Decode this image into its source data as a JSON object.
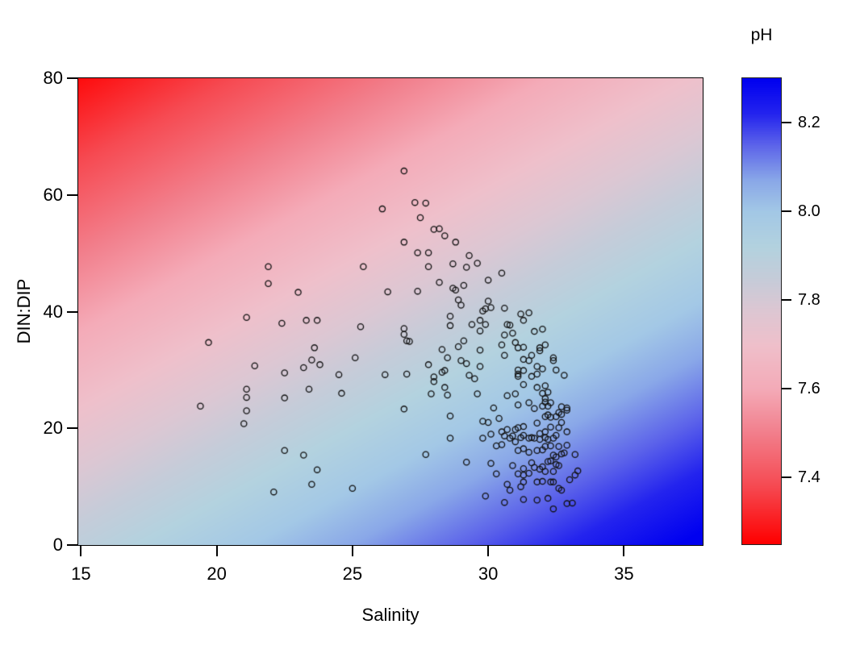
{
  "chart_data": {
    "type": "scatter",
    "title": "",
    "xlabel": "Salinity",
    "ylabel": "DIN:DIP",
    "legend_title": "pH",
    "x_domain": [
      14.9,
      37.9
    ],
    "y_domain": [
      0,
      80
    ],
    "x_ticks": [
      15,
      20,
      25,
      30,
      35
    ],
    "y_ticks": [
      0,
      20,
      40,
      60,
      80
    ],
    "grid": false,
    "legend_position": "right-colorbar",
    "background_surface": {
      "description": "diagonal pH gradient surface, red (low pH) at top-left to blue (high pH) at bottom-right",
      "model": "pH = 7.88 + 0.0191*(salinity-15) - 0.0076*(DIN:DIP)",
      "at_sal15_din0": 7.88,
      "per_salinity": 0.0191,
      "per_dindip": -0.0076
    },
    "colorbar": {
      "title": "pH",
      "domain": [
        7.25,
        8.3
      ],
      "ticks": [
        7.4,
        7.6,
        7.8,
        8.0,
        8.2
      ],
      "ramp": [
        [
          7.25,
          "#ff0000"
        ],
        [
          7.38,
          "#f64a52"
        ],
        [
          7.5,
          "#f27f8c"
        ],
        [
          7.6,
          "#f4abb8"
        ],
        [
          7.7,
          "#efc0cb"
        ],
        [
          7.78,
          "#dcc7d3"
        ],
        [
          7.85,
          "#c5ccd9"
        ],
        [
          7.92,
          "#b3d2df"
        ],
        [
          8.0,
          "#a3c8e6"
        ],
        [
          8.07,
          "#8aa8e8"
        ],
        [
          8.15,
          "#5c63ea"
        ],
        [
          8.22,
          "#2424ee"
        ],
        [
          8.3,
          "#0000f0"
        ]
      ]
    },
    "point_style": {
      "shape": "open-circle",
      "stroke_color": "#111111",
      "radius_px": 3.6,
      "stroke_width_px": 1.3
    },
    "points": [
      [
        19.4,
        23.8
      ],
      [
        19.7,
        34.7
      ],
      [
        21.0,
        20.8
      ],
      [
        21.1,
        39.0
      ],
      [
        21.1,
        26.7
      ],
      [
        21.1,
        25.3
      ],
      [
        21.1,
        23.0
      ],
      [
        21.4,
        30.7
      ],
      [
        21.9,
        47.7
      ],
      [
        21.9,
        44.8
      ],
      [
        22.1,
        9.1
      ],
      [
        22.4,
        38.0
      ],
      [
        22.5,
        29.5
      ],
      [
        22.5,
        25.2
      ],
      [
        22.5,
        16.2
      ],
      [
        23.0,
        43.3
      ],
      [
        23.2,
        30.4
      ],
      [
        23.2,
        15.4
      ],
      [
        23.3,
        38.5
      ],
      [
        23.4,
        26.7
      ],
      [
        23.5,
        31.7
      ],
      [
        23.5,
        10.4
      ],
      [
        23.6,
        33.8
      ],
      [
        23.7,
        38.5
      ],
      [
        23.7,
        12.9
      ],
      [
        23.8,
        30.9
      ],
      [
        24.5,
        29.2
      ],
      [
        24.6,
        26.0
      ],
      [
        25.0,
        9.7
      ],
      [
        25.1,
        32.1
      ],
      [
        25.3,
        37.4
      ],
      [
        25.4,
        47.7
      ],
      [
        26.1,
        57.6
      ],
      [
        26.2,
        29.2
      ],
      [
        26.3,
        43.4
      ],
      [
        26.9,
        64.1
      ],
      [
        26.9,
        51.9
      ],
      [
        26.9,
        37.1
      ],
      [
        26.9,
        36.1
      ],
      [
        26.9,
        23.3
      ],
      [
        27.0,
        35.0
      ],
      [
        27.1,
        34.9
      ],
      [
        27.0,
        29.3
      ],
      [
        27.3,
        58.7
      ],
      [
        27.4,
        50.1
      ],
      [
        27.4,
        43.5
      ],
      [
        27.5,
        56.1
      ],
      [
        27.7,
        58.6
      ],
      [
        27.7,
        15.5
      ],
      [
        27.8,
        50.1
      ],
      [
        27.8,
        47.7
      ],
      [
        27.8,
        30.9
      ],
      [
        27.9,
        25.9
      ],
      [
        28.0,
        54.1
      ],
      [
        28.0,
        28.8
      ],
      [
        28.0,
        28.0
      ],
      [
        28.2,
        54.2
      ],
      [
        28.2,
        45.0
      ],
      [
        28.3,
        33.5
      ],
      [
        28.3,
        29.6
      ],
      [
        28.4,
        53.0
      ],
      [
        28.4,
        29.9
      ],
      [
        28.4,
        27.0
      ],
      [
        28.5,
        32.1
      ],
      [
        28.5,
        25.7
      ],
      [
        28.6,
        39.2
      ],
      [
        28.6,
        37.6
      ],
      [
        28.6,
        22.1
      ],
      [
        28.6,
        18.3
      ],
      [
        28.7,
        48.2
      ],
      [
        28.7,
        44.0
      ],
      [
        28.8,
        51.9
      ],
      [
        28.8,
        43.7
      ],
      [
        28.9,
        42.0
      ],
      [
        28.9,
        34.0
      ],
      [
        29.0,
        41.1
      ],
      [
        29.0,
        31.6
      ],
      [
        29.1,
        44.5
      ],
      [
        29.1,
        35.0
      ],
      [
        29.2,
        47.6
      ],
      [
        29.2,
        31.1
      ],
      [
        29.2,
        14.2
      ],
      [
        29.3,
        49.6
      ],
      [
        29.3,
        29.1
      ],
      [
        29.4,
        37.8
      ],
      [
        29.5,
        28.5
      ],
      [
        29.6,
        48.3
      ],
      [
        29.6,
        25.9
      ],
      [
        29.7,
        38.5
      ],
      [
        29.7,
        36.7
      ],
      [
        29.7,
        33.4
      ],
      [
        29.7,
        30.6
      ],
      [
        29.8,
        40.1
      ],
      [
        29.8,
        21.2
      ],
      [
        29.8,
        18.3
      ],
      [
        29.9,
        40.5
      ],
      [
        29.9,
        37.8
      ],
      [
        29.9,
        8.4
      ],
      [
        30.0,
        45.4
      ],
      [
        30.0,
        41.8
      ],
      [
        30.0,
        21.0
      ],
      [
        30.1,
        40.7
      ],
      [
        30.1,
        19.0
      ],
      [
        30.1,
        14.0
      ],
      [
        30.2,
        23.5
      ],
      [
        30.3,
        17.0
      ],
      [
        30.3,
        12.2
      ],
      [
        30.4,
        21.7
      ],
      [
        30.5,
        46.6
      ],
      [
        30.5,
        34.3
      ],
      [
        30.5,
        19.4
      ],
      [
        30.5,
        17.2
      ],
      [
        30.6,
        40.6
      ],
      [
        30.6,
        36.0
      ],
      [
        30.6,
        32.5
      ],
      [
        30.6,
        18.7
      ],
      [
        30.6,
        7.3
      ],
      [
        30.7,
        37.8
      ],
      [
        30.7,
        25.6
      ],
      [
        30.7,
        19.8
      ],
      [
        30.7,
        10.4
      ],
      [
        30.8,
        37.7
      ],
      [
        30.8,
        18.3
      ],
      [
        30.8,
        9.4
      ],
      [
        30.9,
        36.3
      ],
      [
        30.9,
        18.7
      ],
      [
        30.9,
        13.6
      ],
      [
        31.0,
        34.7
      ],
      [
        31.0,
        25.9
      ],
      [
        31.0,
        19.8
      ],
      [
        31.0,
        17.7
      ],
      [
        31.1,
        33.8
      ],
      [
        31.1,
        30.0
      ],
      [
        31.1,
        29.3
      ],
      [
        31.1,
        28.9
      ],
      [
        31.1,
        24.0
      ],
      [
        31.1,
        20.1
      ],
      [
        31.1,
        16.2
      ],
      [
        31.1,
        12.2
      ],
      [
        31.2,
        39.6
      ],
      [
        31.2,
        18.4
      ],
      [
        31.2,
        10.0
      ],
      [
        31.3,
        38.5
      ],
      [
        31.3,
        33.9
      ],
      [
        31.3,
        31.8
      ],
      [
        31.3,
        29.9
      ],
      [
        31.3,
        27.5
      ],
      [
        31.3,
        20.3
      ],
      [
        31.3,
        18.8
      ],
      [
        31.3,
        16.5
      ],
      [
        31.3,
        13.1
      ],
      [
        31.3,
        12.0
      ],
      [
        31.3,
        10.8
      ],
      [
        31.3,
        7.8
      ],
      [
        31.5,
        39.8
      ],
      [
        31.5,
        31.6
      ],
      [
        31.5,
        24.4
      ],
      [
        31.5,
        18.3
      ],
      [
        31.5,
        15.9
      ],
      [
        31.5,
        12.3
      ],
      [
        31.6,
        32.5
      ],
      [
        31.6,
        28.9
      ],
      [
        31.6,
        18.4
      ],
      [
        31.6,
        14.1
      ],
      [
        31.7,
        36.6
      ],
      [
        31.7,
        23.4
      ],
      [
        31.7,
        18.3
      ],
      [
        31.7,
        13.3
      ],
      [
        31.8,
        30.6
      ],
      [
        31.8,
        29.3
      ],
      [
        31.8,
        27.0
      ],
      [
        31.8,
        20.9
      ],
      [
        31.8,
        16.2
      ],
      [
        31.8,
        10.8
      ],
      [
        31.8,
        7.7
      ],
      [
        31.9,
        33.8
      ],
      [
        31.9,
        33.3
      ],
      [
        31.9,
        19.1
      ],
      [
        31.9,
        18.1
      ],
      [
        31.9,
        13.0
      ],
      [
        32.0,
        37.0
      ],
      [
        32.0,
        30.2
      ],
      [
        32.0,
        26.0
      ],
      [
        32.0,
        23.8
      ],
      [
        32.0,
        16.3
      ],
      [
        32.0,
        13.4
      ],
      [
        32.0,
        10.9
      ],
      [
        32.1,
        34.3
      ],
      [
        32.1,
        27.3
      ],
      [
        32.1,
        25.1
      ],
      [
        32.1,
        24.5
      ],
      [
        32.1,
        22.0
      ],
      [
        32.1,
        19.4
      ],
      [
        32.1,
        18.4
      ],
      [
        32.1,
        16.9
      ],
      [
        32.1,
        12.6
      ],
      [
        32.2,
        26.2
      ],
      [
        32.2,
        23.8
      ],
      [
        32.2,
        22.3
      ],
      [
        32.2,
        18.1
      ],
      [
        32.2,
        14.3
      ],
      [
        32.2,
        8.0
      ],
      [
        32.3,
        24.4
      ],
      [
        32.3,
        21.9
      ],
      [
        32.3,
        20.2
      ],
      [
        32.3,
        17.0
      ],
      [
        32.3,
        14.4
      ],
      [
        32.3,
        10.8
      ],
      [
        32.4,
        32.1
      ],
      [
        32.4,
        31.6
      ],
      [
        32.4,
        18.3
      ],
      [
        32.4,
        15.4
      ],
      [
        32.4,
        12.6
      ],
      [
        32.4,
        10.8
      ],
      [
        32.4,
        6.2
      ],
      [
        32.5,
        30.0
      ],
      [
        32.5,
        22.0
      ],
      [
        32.5,
        18.8
      ],
      [
        32.5,
        15.1
      ],
      [
        32.5,
        13.8
      ],
      [
        32.6,
        22.7
      ],
      [
        32.6,
        20.1
      ],
      [
        32.6,
        16.9
      ],
      [
        32.6,
        13.6
      ],
      [
        32.6,
        9.7
      ],
      [
        32.7,
        23.7
      ],
      [
        32.7,
        22.4
      ],
      [
        32.7,
        21.0
      ],
      [
        32.7,
        15.6
      ],
      [
        32.7,
        9.4
      ],
      [
        32.8,
        29.1
      ],
      [
        32.8,
        15.8
      ],
      [
        32.9,
        23.5
      ],
      [
        32.9,
        23.1
      ],
      [
        32.9,
        19.4
      ],
      [
        32.9,
        17.1
      ],
      [
        32.9,
        7.1
      ],
      [
        33.0,
        11.2
      ],
      [
        33.1,
        7.2
      ],
      [
        33.2,
        15.5
      ],
      [
        33.2,
        12.0
      ],
      [
        33.3,
        12.7
      ]
    ]
  }
}
